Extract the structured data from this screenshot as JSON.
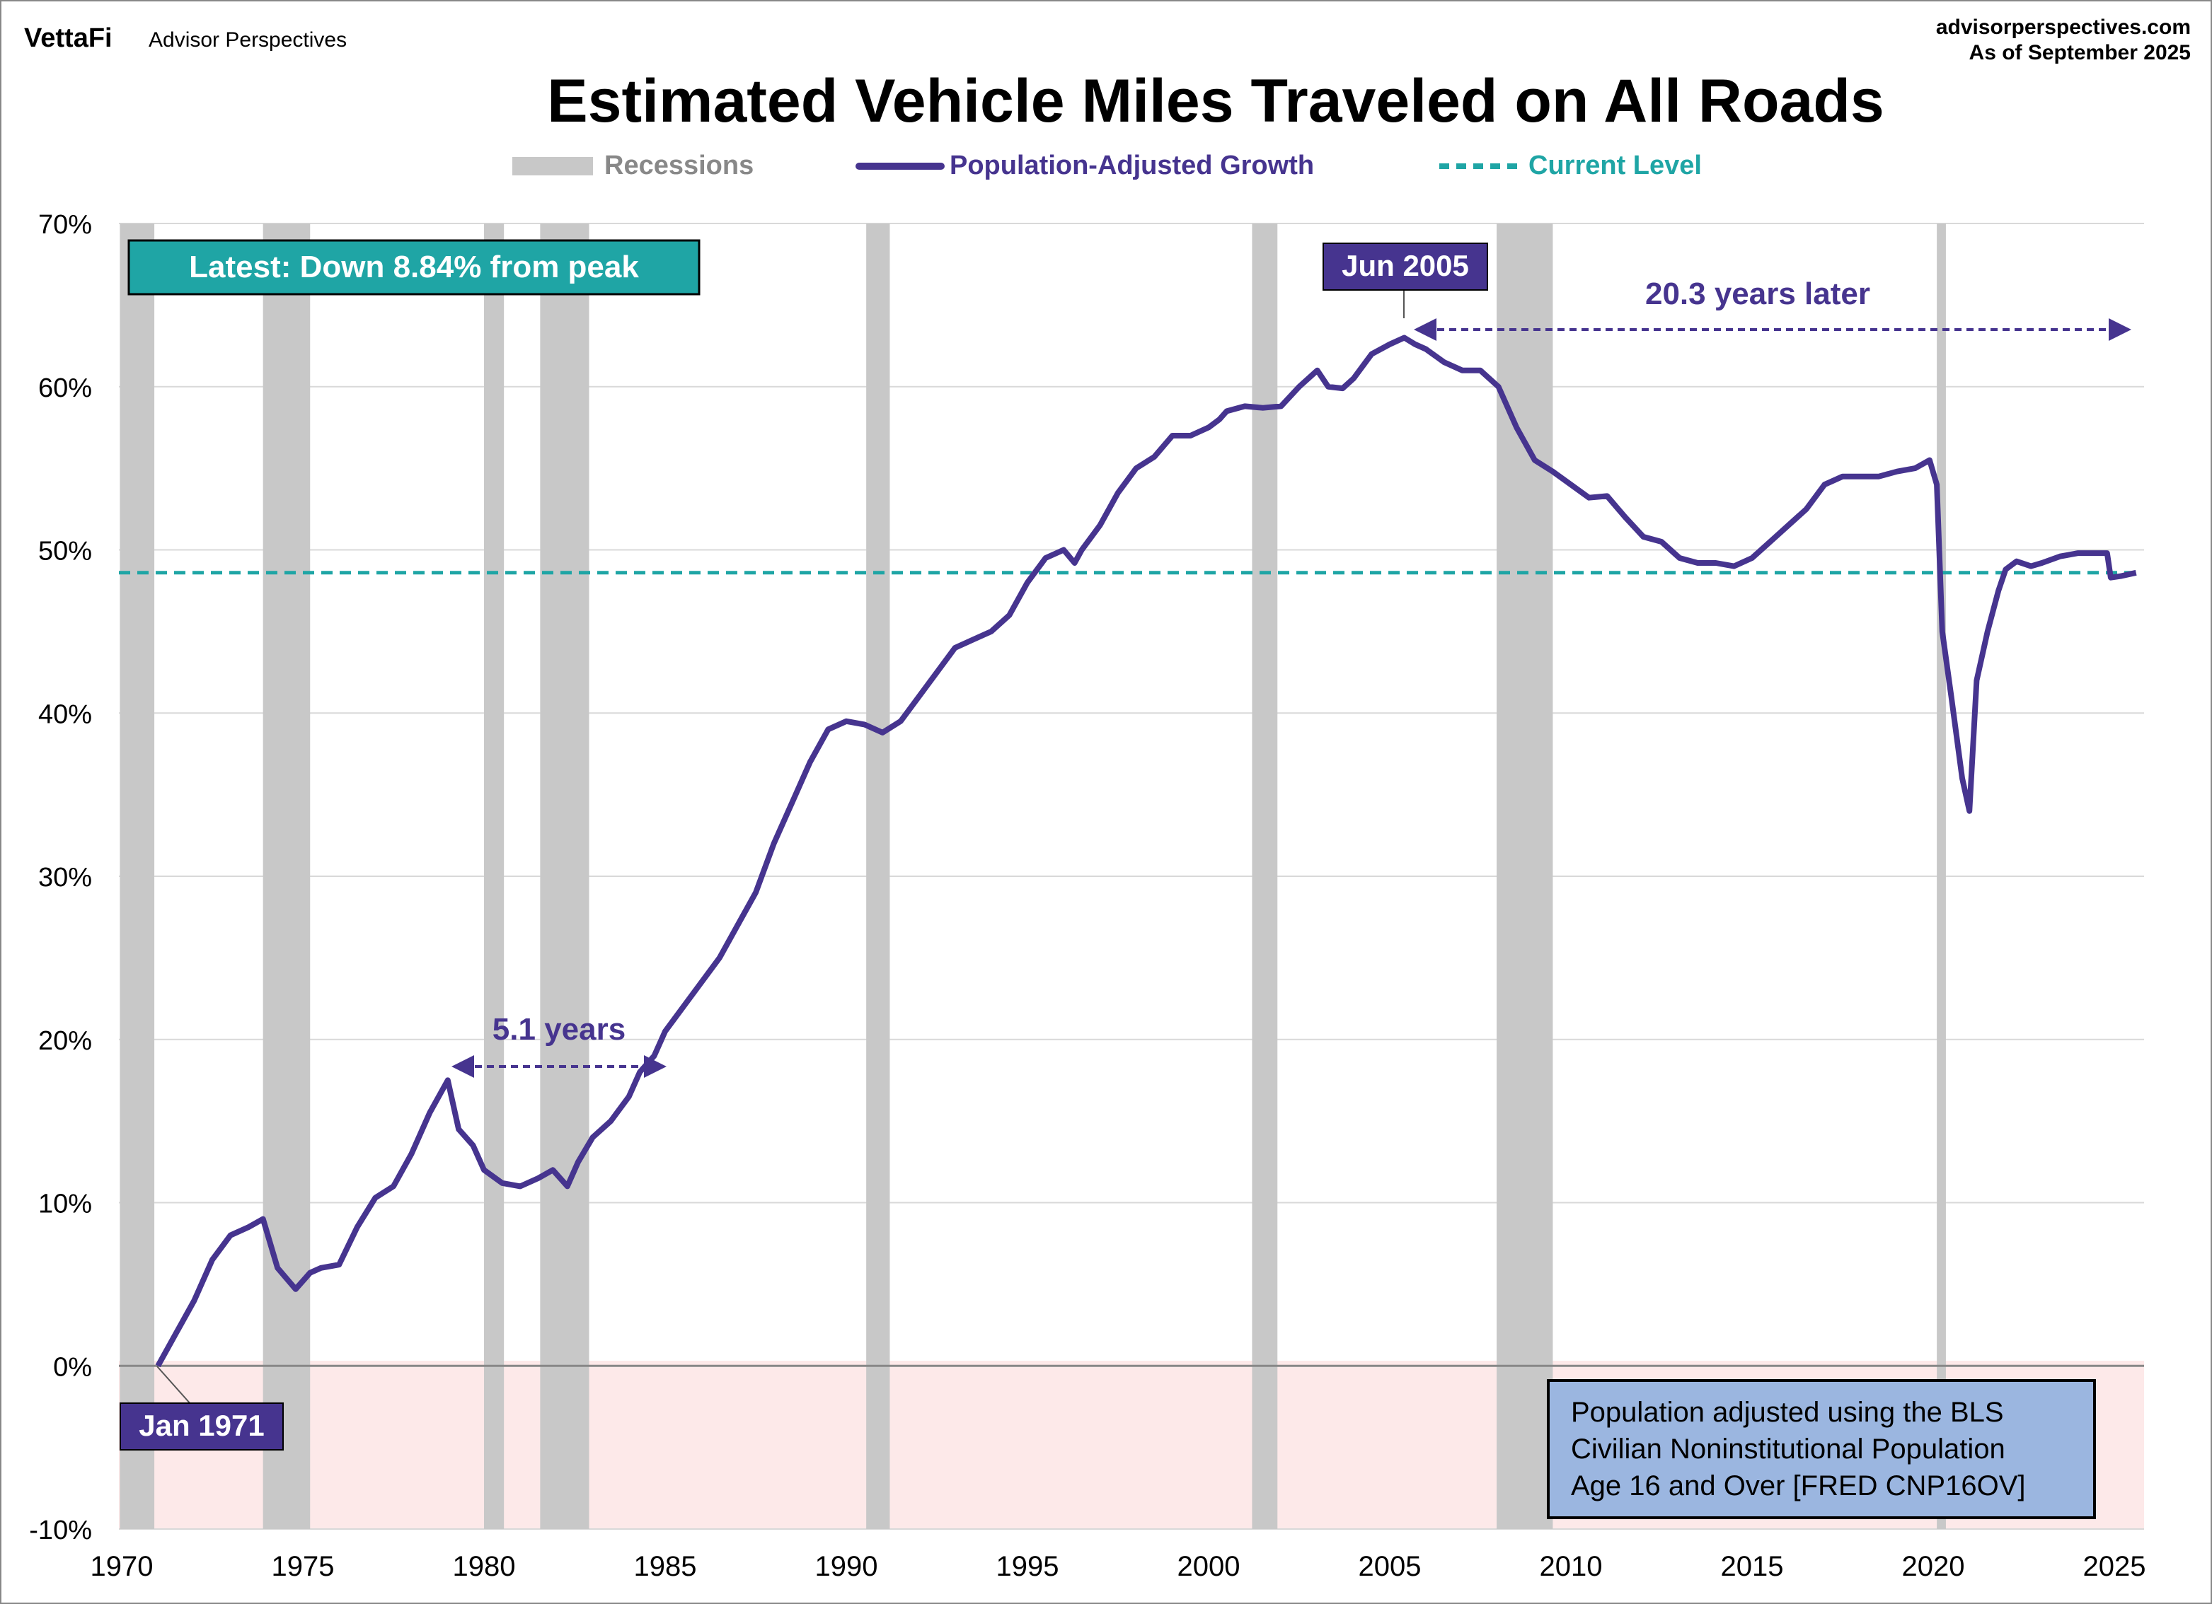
{
  "header": {
    "brand_logo": "VettaFi",
    "brand_sub": "Advisor Perspectives",
    "site": "advisorperspectives.com",
    "as_of": "As of September 2025"
  },
  "chart_data": {
    "type": "line",
    "title": "Estimated Vehicle Miles Traveled on All Roads",
    "xlabel": "",
    "ylabel": "",
    "xlim": [
      1970,
      2026.2
    ],
    "ylim": [
      -10,
      70
    ],
    "x_ticks": [
      "1970",
      "1975",
      "1980",
      "1985",
      "1990",
      "1995",
      "2000",
      "2005",
      "2010",
      "2015",
      "2020",
      "2025"
    ],
    "y_ticks": [
      "70%",
      "60%",
      "50%",
      "40%",
      "30%",
      "20%",
      "10%",
      "0%",
      "-10%"
    ],
    "legend": {
      "placement": "top-center",
      "entries": [
        {
          "label": "Recessions",
          "color": "#c8c8c8"
        },
        {
          "label": "Population-Adjusted Growth",
          "color": "#46348f"
        },
        {
          "label": "Current Level",
          "color": "#1fa5a5"
        }
      ]
    },
    "recessions": [
      [
        1969.95,
        1970.9
      ],
      [
        1973.9,
        1975.2
      ],
      [
        1980.0,
        1980.55
      ],
      [
        1981.55,
        1982.9
      ],
      [
        1990.55,
        1991.2
      ],
      [
        2001.2,
        2001.9
      ],
      [
        2007.95,
        2009.5
      ],
      [
        2020.1,
        2020.35
      ]
    ],
    "current_level": 48.6,
    "series": [
      {
        "name": "Population-Adjusted Growth",
        "points": [
          [
            1971.0,
            0
          ],
          [
            1971.5,
            2
          ],
          [
            1972,
            4
          ],
          [
            1972.5,
            6.5
          ],
          [
            1973,
            8
          ],
          [
            1973.5,
            8.5
          ],
          [
            1973.9,
            9
          ],
          [
            1974.3,
            6
          ],
          [
            1974.8,
            4.7
          ],
          [
            1975.2,
            5.7
          ],
          [
            1975.5,
            6
          ],
          [
            1976,
            6.2
          ],
          [
            1976.5,
            8.5
          ],
          [
            1977,
            10.3
          ],
          [
            1977.5,
            11
          ],
          [
            1978,
            13
          ],
          [
            1978.5,
            15.5
          ],
          [
            1979,
            17.5
          ],
          [
            1979.3,
            14.5
          ],
          [
            1979.7,
            13.5
          ],
          [
            1980,
            12
          ],
          [
            1980.5,
            11.2
          ],
          [
            1981,
            11
          ],
          [
            1981.5,
            11.5
          ],
          [
            1981.9,
            12
          ],
          [
            1982.3,
            11
          ],
          [
            1982.6,
            12.5
          ],
          [
            1983,
            14
          ],
          [
            1983.5,
            15
          ],
          [
            1984,
            16.5
          ],
          [
            1984.3,
            18
          ],
          [
            1984.7,
            19
          ],
          [
            1985,
            20.5
          ],
          [
            1985.5,
            22
          ],
          [
            1986,
            23.5
          ],
          [
            1986.5,
            25
          ],
          [
            1987,
            27
          ],
          [
            1987.5,
            29
          ],
          [
            1988,
            32
          ],
          [
            1988.5,
            34.5
          ],
          [
            1989,
            37
          ],
          [
            1989.5,
            39
          ],
          [
            1990,
            39.5
          ],
          [
            1990.5,
            39.3
          ],
          [
            1991,
            38.8
          ],
          [
            1991.5,
            39.5
          ],
          [
            1992,
            41
          ],
          [
            1992.5,
            42.5
          ],
          [
            1993,
            44
          ],
          [
            1993.5,
            44.5
          ],
          [
            1994,
            45
          ],
          [
            1994.5,
            46
          ],
          [
            1995,
            48
          ],
          [
            1995.5,
            49.5
          ],
          [
            1996,
            50
          ],
          [
            1996.3,
            49.2
          ],
          [
            1996.5,
            50
          ],
          [
            1997,
            51.5
          ],
          [
            1997.5,
            53.5
          ],
          [
            1998,
            55
          ],
          [
            1998.5,
            55.7
          ],
          [
            1999,
            57
          ],
          [
            1999.5,
            57
          ],
          [
            2000,
            57.5
          ],
          [
            2000.3,
            58
          ],
          [
            2000.5,
            58.5
          ],
          [
            2001,
            58.8
          ],
          [
            2001.5,
            58.7
          ],
          [
            2002,
            58.8
          ],
          [
            2002.5,
            60
          ],
          [
            2003,
            61
          ],
          [
            2003.3,
            60
          ],
          [
            2003.7,
            59.9
          ],
          [
            2004,
            60.5
          ],
          [
            2004.5,
            62
          ],
          [
            2005,
            62.6
          ],
          [
            2005.4,
            63
          ],
          [
            2005.7,
            62.6
          ],
          [
            2006,
            62.3
          ],
          [
            2006.5,
            61.5
          ],
          [
            2007,
            61
          ],
          [
            2007.5,
            61
          ],
          [
            2008,
            60
          ],
          [
            2008.5,
            57.5
          ],
          [
            2009,
            55.5
          ],
          [
            2009.5,
            54.8
          ],
          [
            2010,
            54
          ],
          [
            2010.5,
            53.2
          ],
          [
            2011,
            53.3
          ],
          [
            2011.5,
            52
          ],
          [
            2012,
            50.8
          ],
          [
            2012.5,
            50.5
          ],
          [
            2013,
            49.5
          ],
          [
            2013.5,
            49.2
          ],
          [
            2014,
            49.2
          ],
          [
            2014.5,
            49
          ],
          [
            2015,
            49.5
          ],
          [
            2015.5,
            50.5
          ],
          [
            2016,
            51.5
          ],
          [
            2016.5,
            52.5
          ],
          [
            2017,
            54
          ],
          [
            2017.5,
            54.5
          ],
          [
            2018,
            54.5
          ],
          [
            2018.5,
            54.5
          ],
          [
            2019,
            54.8
          ],
          [
            2019.5,
            55
          ],
          [
            2019.9,
            55.5
          ],
          [
            2020.1,
            54
          ],
          [
            2020.25,
            45
          ],
          [
            2020.5,
            41
          ],
          [
            2020.8,
            36
          ],
          [
            2021.0,
            34
          ],
          [
            2021.2,
            42
          ],
          [
            2021.5,
            45
          ],
          [
            2021.8,
            47.5
          ],
          [
            2022,
            48.8
          ],
          [
            2022.3,
            49.3
          ],
          [
            2022.7,
            49
          ],
          [
            2023,
            49.2
          ],
          [
            2023.5,
            49.6
          ],
          [
            2024,
            49.8
          ],
          [
            2024.5,
            49.8
          ],
          [
            2024.8,
            49.8
          ],
          [
            2024.9,
            48.3
          ],
          [
            2025.2,
            48.4
          ],
          [
            2025.6,
            48.6
          ]
        ]
      }
    ],
    "annotations": {
      "latest": "Latest: Down 8.84% from peak",
      "peak": "Jun 2005",
      "start": "Jan 1971",
      "later": "20.3 years later",
      "years": "5.1 years",
      "note": [
        "Population adjusted using the BLS",
        "Civilian Noninstitutional Population",
        "Age 16 and Over  [FRED CNP16OV]"
      ]
    }
  }
}
